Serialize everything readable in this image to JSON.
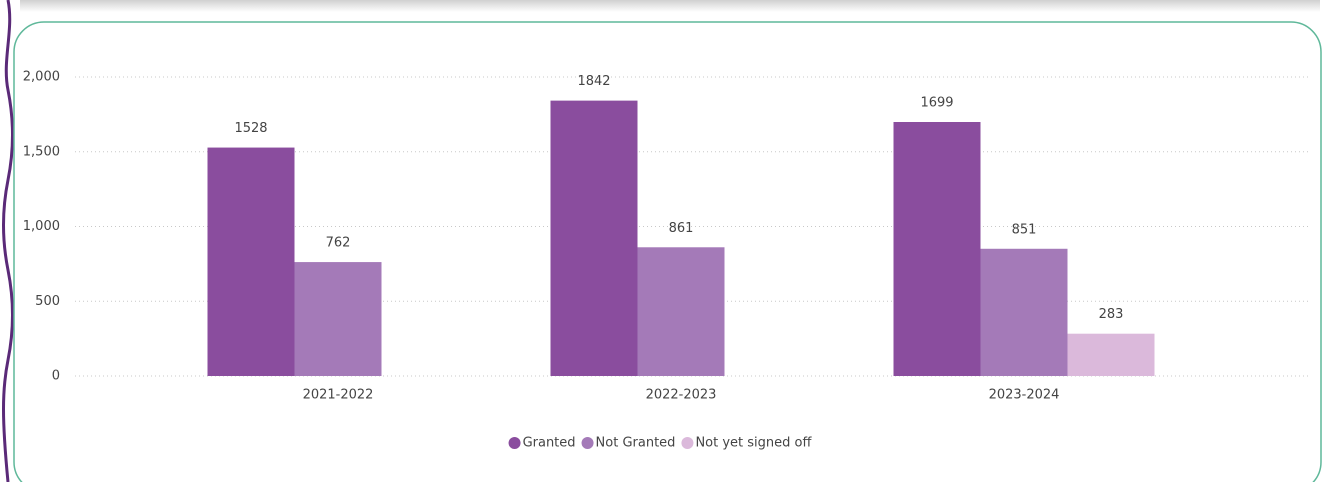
{
  "chart_data": {
    "type": "bar",
    "categories": [
      "2021-2022",
      "2022-2023",
      "2023-2024"
    ],
    "series": [
      {
        "name": "Granted",
        "color": "#8a4d9e",
        "values": [
          1528,
          1842,
          1699
        ]
      },
      {
        "name": "Not Granted",
        "color": "#a47ab8",
        "values": [
          762,
          861,
          851
        ]
      },
      {
        "name": "Not yet signed off",
        "color": "#dbb9db",
        "values": [
          null,
          null,
          283
        ]
      }
    ],
    "ylim": [
      0,
      2000
    ],
    "yticks": [
      0,
      500,
      {
        "value": 1000,
        "label": "1,000"
      },
      {
        "value": 1500,
        "label": "1,500"
      },
      {
        "value": 2000,
        "label": "2,000"
      }
    ],
    "grid": true,
    "legend": "bottom"
  }
}
